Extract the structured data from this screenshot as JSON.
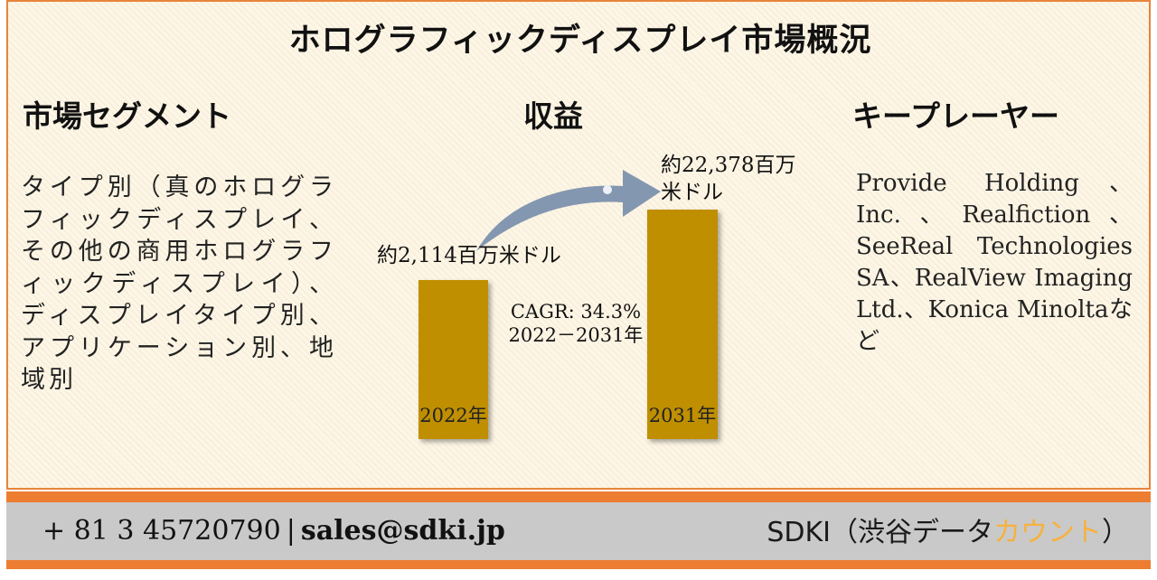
{
  "title": "ホログラフィックディスプレイ市場概況",
  "segment": {
    "heading": "市場セグメント",
    "text": "タイプ別（真のホログラフィックディスプレイ、その他の商用ホログラフィックディスプレイ）、ディスプレイタイプ別、アプリケーション別、地域別"
  },
  "revenue": {
    "heading": "収益",
    "value_2022": "約2,114百万米ドル",
    "value_2031": "約22,378百万米ドル",
    "cagr_line1": "CAGR: 34.3%",
    "cagr_line2": "2022－2031年"
  },
  "chart_data": {
    "type": "bar",
    "categories": [
      "2022年",
      "2031年"
    ],
    "values": [
      2114,
      22378
    ],
    "title": "収益"
  },
  "players": {
    "heading": "キープレーヤー",
    "text": "Provide Holding、Inc.、Realfiction、SeeReal Technologies SA、RealView Imaging Ltd.、Konica Minoltaなど"
  },
  "footer": {
    "phone": "+ 81 3 45720790",
    "separator": "|",
    "email": "sales@sdki.jp",
    "brand_main": "SDKI（渋谷データ",
    "brand_accent": "カウント",
    "brand_close": "）"
  },
  "colors": {
    "bar": "#bf8f00",
    "border": "#ed7d31",
    "footer_bg": "#c9c9c9",
    "arrow": "#8497b0",
    "brand_accent": "#f7b13e"
  }
}
